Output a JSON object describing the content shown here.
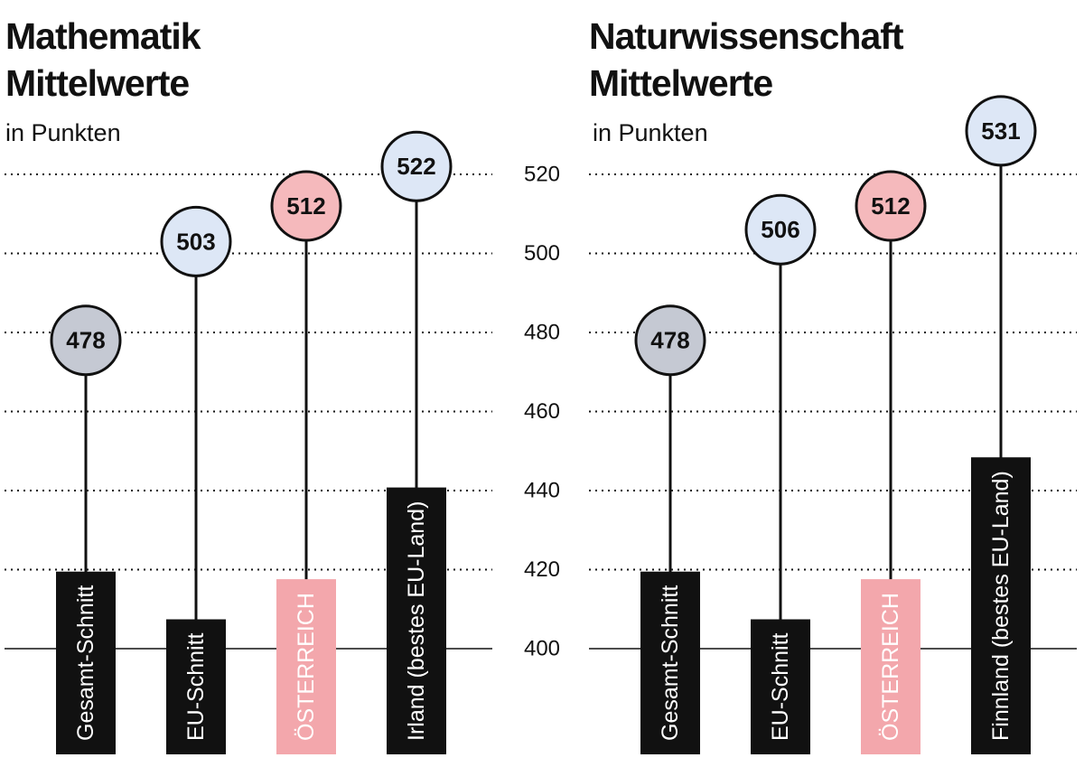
{
  "chart_data": [
    {
      "type": "lollipop",
      "title": "Mathematik Mittelwerte",
      "subtitle": "in Punkten",
      "categories": [
        "Gesamt-Schnitt",
        "EU-Schnitt",
        "ÖSTERREICH",
        "Irland (bestes EU-Land)"
      ],
      "values": [
        478,
        503,
        512,
        522
      ],
      "colors": [
        "#c5c9d3",
        "#dde7f6",
        "#f5b9bc",
        "#dde7f6"
      ],
      "label_colors": [
        "#111111",
        "#111111",
        "#f3a7ac",
        "#111111"
      ],
      "ylim": [
        400,
        537
      ],
      "yticks": [
        400,
        420,
        440,
        460,
        480,
        500,
        520
      ],
      "grid": true
    },
    {
      "type": "lollipop",
      "title": "Naturwissenschaft Mittelwerte",
      "subtitle": "in Punkten",
      "categories": [
        "Gesamt-Schnitt",
        "EU-Schnitt",
        "ÖSTERREICH",
        "Finnland (bestes EU-Land)"
      ],
      "values": [
        478,
        506,
        512,
        531
      ],
      "colors": [
        "#c5c9d3",
        "#dde7f6",
        "#f5b9bc",
        "#dde7f6"
      ],
      "label_colors": [
        "#111111",
        "#111111",
        "#f3a7ac",
        "#111111"
      ],
      "ylim": [
        400,
        537
      ],
      "yticks": [
        400,
        420,
        440,
        460,
        480,
        500,
        520
      ],
      "grid": true
    }
  ]
}
